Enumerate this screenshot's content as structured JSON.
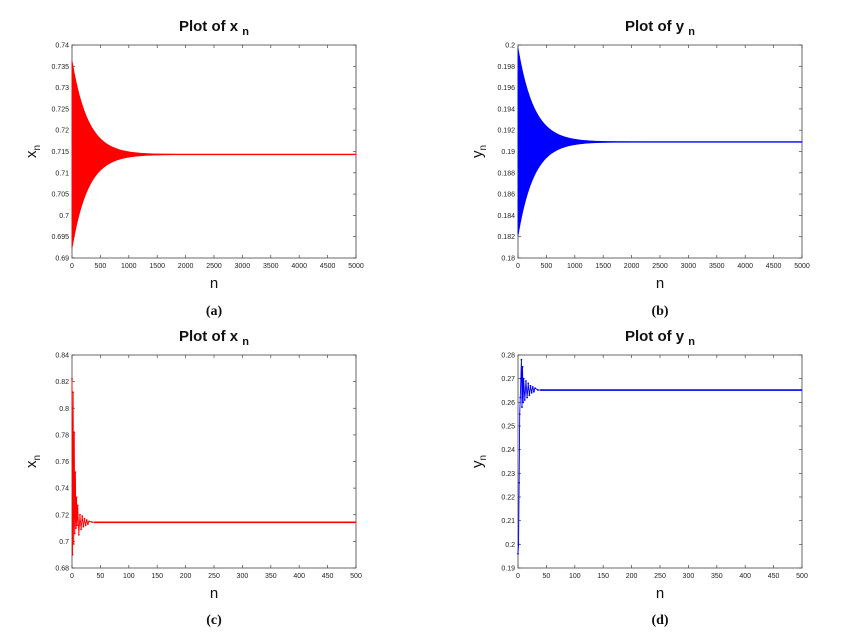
{
  "chart_data": [
    {
      "panel": "a",
      "type": "line",
      "caption": "(a)",
      "title": "Plot of x",
      "title_sub": "n",
      "xlabel": "n",
      "ylabel": "x",
      "ylabel_sub": "n",
      "color": "#ff0000",
      "xlim": [
        0,
        5000
      ],
      "ylim": [
        0.69,
        0.74
      ],
      "xticks": [
        0,
        500,
        1000,
        1500,
        2000,
        2500,
        3000,
        3500,
        4000,
        4500,
        5000
      ],
      "yticks": [
        0.69,
        0.695,
        0.7,
        0.705,
        0.71,
        0.715,
        0.72,
        0.725,
        0.73,
        0.735,
        0.74
      ],
      "series": [
        {
          "equilibrium": 0.7143,
          "initial_amplitude": 0.022,
          "decay_constant": 280,
          "oscillation": "period-2"
        }
      ]
    },
    {
      "panel": "b",
      "type": "line",
      "caption": "(b)",
      "title": "Plot of y",
      "title_sub": "n",
      "xlabel": "n",
      "ylabel": "y",
      "ylabel_sub": "n",
      "color": "#0000ff",
      "xlim": [
        0,
        5000
      ],
      "ylim": [
        0.18,
        0.2
      ],
      "xticks": [
        0,
        500,
        1000,
        1500,
        2000,
        2500,
        3000,
        3500,
        4000,
        4500,
        5000
      ],
      "yticks": [
        0.18,
        0.182,
        0.184,
        0.186,
        0.188,
        0.19,
        0.192,
        0.194,
        0.196,
        0.198,
        0.2
      ],
      "series": [
        {
          "equilibrium": 0.1909,
          "initial_amplitude": 0.0088,
          "decay_constant": 280,
          "oscillation": "period-2"
        }
      ]
    },
    {
      "panel": "c",
      "type": "line",
      "caption": "(c)",
      "title": "Plot of x",
      "title_sub": "n",
      "xlabel": "n",
      "ylabel": "x",
      "ylabel_sub": "n",
      "color": "#ff0000",
      "xlim": [
        0,
        500
      ],
      "ylim": [
        0.68,
        0.84
      ],
      "xticks": [
        0,
        50,
        100,
        150,
        200,
        250,
        300,
        350,
        400,
        450,
        500
      ],
      "yticks": [
        0.68,
        0.7,
        0.72,
        0.74,
        0.76,
        0.78,
        0.8,
        0.82,
        0.84
      ],
      "series": [
        {
          "x": [
            0,
            1,
            2,
            3,
            4,
            5,
            6,
            7,
            8,
            9,
            10,
            12,
            14,
            16,
            18,
            20,
            22,
            24,
            26,
            28,
            30,
            35,
            40,
            500
          ],
          "y": [
            0.822,
            0.69,
            0.812,
            0.698,
            0.782,
            0.706,
            0.752,
            0.71,
            0.733,
            0.712,
            0.727,
            0.705,
            0.72,
            0.709,
            0.719,
            0.711,
            0.717,
            0.712,
            0.716,
            0.713,
            0.715,
            0.7145,
            0.7143,
            0.7143
          ]
        }
      ]
    },
    {
      "panel": "d",
      "type": "line",
      "caption": "(d)",
      "title": "Plot of y",
      "title_sub": "n",
      "xlabel": "n",
      "ylabel": "y",
      "ylabel_sub": "n",
      "color": "#0000ff",
      "xlim": [
        0,
        500
      ],
      "ylim": [
        0.19,
        0.28
      ],
      "xticks": [
        0,
        50,
        100,
        150,
        200,
        250,
        300,
        350,
        400,
        450,
        500
      ],
      "yticks": [
        0.19,
        0.2,
        0.21,
        0.22,
        0.23,
        0.24,
        0.25,
        0.26,
        0.27,
        0.28
      ],
      "series": [
        {
          "x": [
            0,
            1,
            2,
            3,
            4,
            5,
            6,
            7,
            8,
            9,
            10,
            12,
            14,
            16,
            18,
            20,
            22,
            24,
            26,
            28,
            30,
            35,
            40,
            500
          ],
          "y": [
            0.196,
            0.2,
            0.226,
            0.255,
            0.262,
            0.27,
            0.278,
            0.258,
            0.275,
            0.26,
            0.27,
            0.261,
            0.269,
            0.262,
            0.268,
            0.263,
            0.267,
            0.264,
            0.2665,
            0.2645,
            0.266,
            0.2652,
            0.2652,
            0.2652
          ]
        }
      ]
    }
  ]
}
